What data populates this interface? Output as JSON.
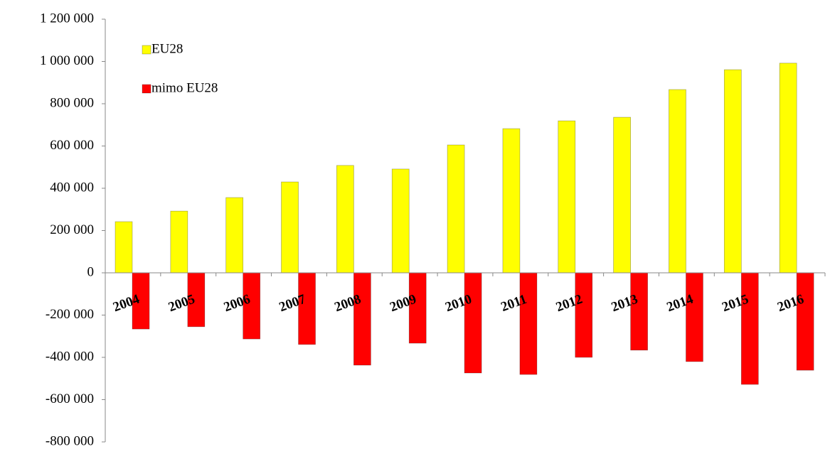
{
  "chart_data": {
    "type": "bar",
    "categories": [
      "2004",
      "2005",
      "2006",
      "2007",
      "2008",
      "2009",
      "2010",
      "2011",
      "2012",
      "2013",
      "2014",
      "2015",
      "2016"
    ],
    "series": [
      {
        "name": "EU28",
        "color": "#ffff00",
        "values": [
          242000,
          292000,
          356000,
          430000,
          508000,
          491000,
          605000,
          682000,
          719000,
          736000,
          867000,
          961000,
          992000
        ]
      },
      {
        "name": "mimo EU28",
        "color": "#ff0000",
        "values": [
          -266000,
          -255000,
          -313000,
          -339000,
          -437000,
          -333000,
          -474000,
          -481000,
          -400000,
          -366000,
          -420000,
          -528000,
          -461000
        ]
      }
    ],
    "ylim": [
      -800000,
      1200000
    ],
    "yticks": [
      {
        "value": -800000,
        "label": "-800 000"
      },
      {
        "value": -600000,
        "label": "-600 000"
      },
      {
        "value": -400000,
        "label": "-400 000"
      },
      {
        "value": -200000,
        "label": "-200 000"
      },
      0,
      {
        "value": 200000,
        "label": "200 000"
      },
      {
        "value": 400000,
        "label": "400 000"
      },
      {
        "value": 600000,
        "label": "600 000"
      },
      {
        "value": 800000,
        "label": "800 000"
      },
      {
        "value": 1000000,
        "label": "1 000 000"
      },
      {
        "value": 1200000,
        "label": "1 200 000"
      }
    ],
    "grid": false,
    "legend": "upper left"
  }
}
